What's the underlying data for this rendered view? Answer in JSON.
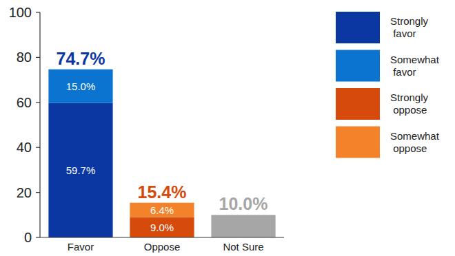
{
  "chart_data": {
    "type": "bar",
    "stacked": true,
    "data_labels": true,
    "categories": [
      "Favor",
      "Oppose",
      "Not Sure"
    ],
    "series": [
      {
        "name": "Strongly favor",
        "color": "#0b37a3",
        "values": [
          59.7,
          null,
          null
        ],
        "value_labels": [
          "59.7%",
          null,
          null
        ]
      },
      {
        "name": "Somewhat favor",
        "color": "#0a74d0",
        "values": [
          15.0,
          null,
          null
        ],
        "value_labels": [
          "15.0%",
          null,
          null
        ]
      },
      {
        "name": "Strongly oppose",
        "color": "#d64a0b",
        "values": [
          null,
          9.0,
          null
        ],
        "value_labels": [
          null,
          "9.0%",
          null
        ]
      },
      {
        "name": "Somewhat oppose",
        "color": "#f4822a",
        "values": [
          null,
          6.4,
          null
        ],
        "value_labels": [
          null,
          "6.4%",
          null
        ]
      },
      {
        "color": "#a6a6a6",
        "data_labels": false,
        "values": [
          null,
          null,
          10.0
        ]
      }
    ],
    "totals": {
      "values": [
        74.7,
        15.4,
        10.0
      ],
      "value_labels": [
        "74.7%",
        "15.4%",
        "10.0%"
      ]
    },
    "ylim": [
      0,
      100
    ],
    "yticks": [
      0,
      20,
      40,
      60,
      80,
      100
    ],
    "grid": false,
    "legend": "upper right"
  }
}
